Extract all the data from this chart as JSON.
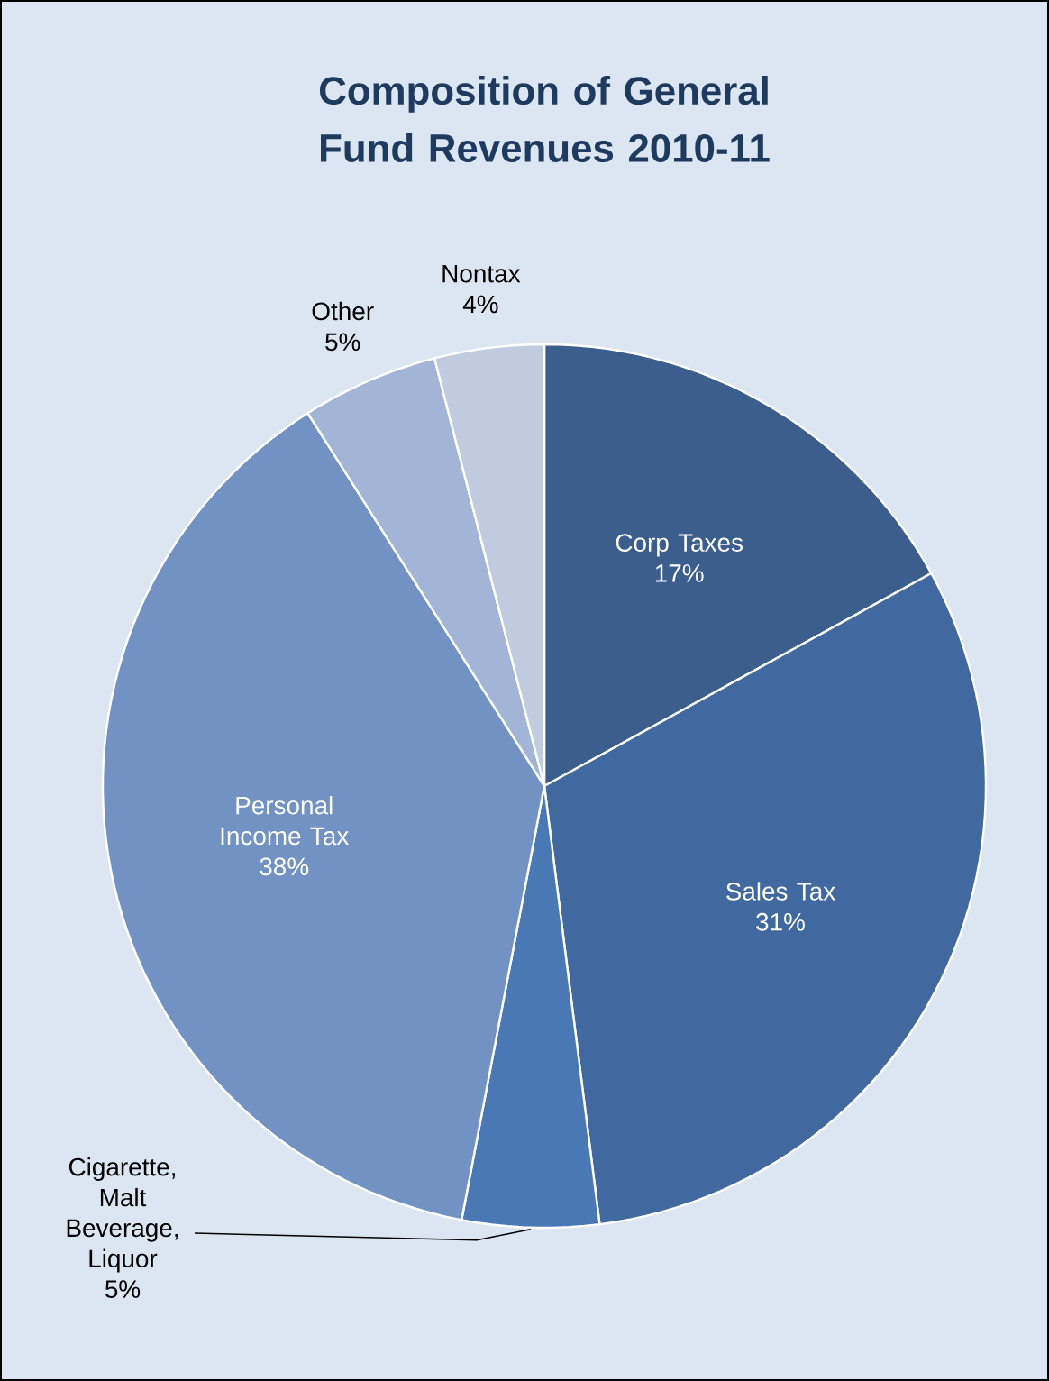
{
  "chart_data": {
    "type": "pie",
    "title": "Composition of General Fund Revenues 2010-11",
    "categories": [
      "Corp Taxes",
      "Sales Tax",
      "Cigarette, Malt Beverage, Liquor",
      "Personal Income Tax",
      "Other",
      "Nontax"
    ],
    "values": [
      17,
      31,
      5,
      38,
      5,
      4
    ],
    "value_labels": [
      "17%",
      "31%",
      "5%",
      "38%",
      "5%",
      "4%"
    ],
    "colors": [
      "#3b5e8c",
      "#4169a0",
      "#4a78b4",
      "#7292c4",
      "#a3b5d6",
      "#c0cbe0"
    ]
  }
}
